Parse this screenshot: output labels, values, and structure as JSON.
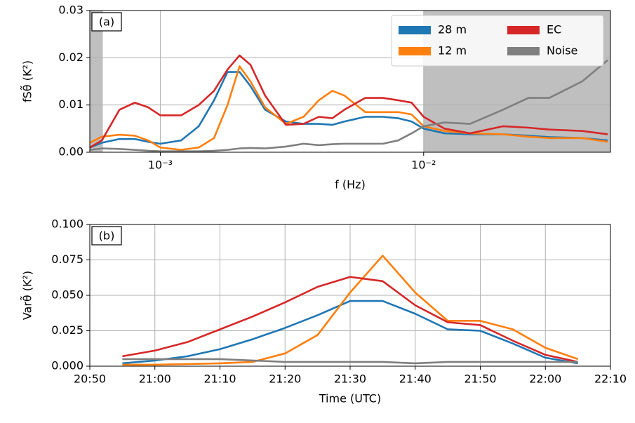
{
  "chart_data": [
    {
      "type": "line",
      "annotation": "(a)",
      "xlabel": "f (Hz)",
      "ylabel": "fSθ̃ (K²)",
      "xlog": true,
      "grid": true,
      "legend": "upper right",
      "xlim": [
        0.00054,
        0.0512
      ],
      "ylim": [
        0,
        0.03
      ],
      "xticks": [
        {
          "value": 0.001,
          "label": "10⁻³"
        },
        {
          "value": 0.01,
          "label": "10⁻²"
        }
      ],
      "yticks": [
        {
          "value": 0,
          "label": "0.00"
        },
        {
          "value": 0.01,
          "label": "0.01"
        },
        {
          "value": 0.02,
          "label": "0.02"
        },
        {
          "value": 0.03,
          "label": "0.03"
        }
      ],
      "shaded_spans": [
        [
          0.00054,
          0.000605
        ],
        [
          0.01,
          0.0512
        ]
      ],
      "x": [
        0.00054,
        0.0006,
        0.0007,
        0.0008,
        0.0009,
        0.001,
        0.0012,
        0.0014,
        0.0016,
        0.0018,
        0.002,
        0.0022,
        0.0025,
        0.003,
        0.0035,
        0.004,
        0.0045,
        0.005,
        0.006,
        0.007,
        0.008,
        0.009,
        0.01,
        0.012,
        0.015,
        0.02,
        0.025,
        0.03,
        0.04,
        0.05
      ],
      "series": [
        {
          "name": "28 m",
          "color": "#1f77b4",
          "values": [
            0.001,
            0.002,
            0.0028,
            0.0028,
            0.0022,
            0.0018,
            0.0025,
            0.0055,
            0.011,
            0.017,
            0.017,
            0.014,
            0.009,
            0.0065,
            0.006,
            0.006,
            0.0058,
            0.0065,
            0.0075,
            0.0075,
            0.0072,
            0.0065,
            0.005,
            0.004,
            0.0038,
            0.0038,
            0.0035,
            0.0032,
            0.003,
            0.0025
          ]
        },
        {
          "name": "12 m",
          "color": "#ff7f0e",
          "values": [
            0.002,
            0.0033,
            0.0037,
            0.0035,
            0.0025,
            0.001,
            0.0005,
            0.001,
            0.003,
            0.01,
            0.0182,
            0.015,
            0.0095,
            0.006,
            0.0075,
            0.011,
            0.013,
            0.012,
            0.0085,
            0.0085,
            0.0085,
            0.008,
            0.0055,
            0.0045,
            0.004,
            0.0038,
            0.0033,
            0.003,
            0.003,
            0.0022
          ]
        },
        {
          "name": "EC",
          "color": "#d62728",
          "values": [
            0.001,
            0.0025,
            0.009,
            0.0105,
            0.0095,
            0.0078,
            0.0078,
            0.01,
            0.013,
            0.0175,
            0.0205,
            0.0185,
            0.012,
            0.0058,
            0.006,
            0.0075,
            0.0072,
            0.009,
            0.0115,
            0.0115,
            0.011,
            0.0105,
            0.0075,
            0.005,
            0.004,
            0.0055,
            0.0052,
            0.0048,
            0.0045,
            0.0038
          ]
        },
        {
          "name": "Noise",
          "color": "#7f7f7f",
          "values": [
            0.0005,
            0.0008,
            0.0007,
            0.0005,
            0.0003,
            0.0002,
            0.0002,
            0.0002,
            0.0003,
            0.0005,
            0.0008,
            0.0009,
            0.0008,
            0.0012,
            0.0018,
            0.0015,
            0.0017,
            0.0018,
            0.0018,
            0.0018,
            0.0025,
            0.004,
            0.0055,
            0.0063,
            0.006,
            0.009,
            0.0115,
            0.0115,
            0.015,
            0.0195
          ]
        }
      ]
    },
    {
      "type": "line",
      "annotation": "(b)",
      "xlabel": "Time (UTC)",
      "ylabel": "Varθ̃ (K²)",
      "grid": true,
      "xlim": [
        "20:50",
        "22:10"
      ],
      "ylim": [
        0,
        0.1
      ],
      "xticks": [
        "20:50",
        "21:00",
        "21:10",
        "21:20",
        "21:30",
        "21:40",
        "21:50",
        "22:00",
        "22:10"
      ],
      "yticks": [
        {
          "value": 0,
          "label": "0.000"
        },
        {
          "value": 0.025,
          "label": "0.025"
        },
        {
          "value": 0.05,
          "label": "0.050"
        },
        {
          "value": 0.075,
          "label": "0.075"
        },
        {
          "value": 0.1,
          "label": "0.100"
        }
      ],
      "x": [
        "20:55",
        "21:00",
        "21:05",
        "21:10",
        "21:15",
        "21:20",
        "21:25",
        "21:30",
        "21:35",
        "21:40",
        "21:45",
        "21:50",
        "21:55",
        "22:00",
        "22:05"
      ],
      "series": [
        {
          "name": "28 m",
          "color": "#1f77b4",
          "values": [
            0.002,
            0.004,
            0.007,
            0.012,
            0.019,
            0.027,
            0.036,
            0.046,
            0.046,
            0.037,
            0.026,
            0.025,
            0.016,
            0.006,
            0.002
          ]
        },
        {
          "name": "12 m",
          "color": "#ff7f0e",
          "values": [
            0.001,
            0.001,
            0.0015,
            0.002,
            0.003,
            0.009,
            0.022,
            0.052,
            0.078,
            0.052,
            0.032,
            0.032,
            0.026,
            0.013,
            0.005
          ]
        },
        {
          "name": "EC",
          "color": "#d62728",
          "values": [
            0.007,
            0.011,
            0.017,
            0.026,
            0.035,
            0.045,
            0.056,
            0.063,
            0.06,
            0.043,
            0.031,
            0.029,
            0.018,
            0.008,
            0.003
          ]
        },
        {
          "name": "Noise",
          "color": "#7f7f7f",
          "values": [
            0.005,
            0.005,
            0.005,
            0.005,
            0.004,
            0.003,
            0.003,
            0.003,
            0.003,
            0.002,
            0.003,
            0.003,
            0.003,
            0.003,
            0.003
          ]
        }
      ]
    }
  ]
}
